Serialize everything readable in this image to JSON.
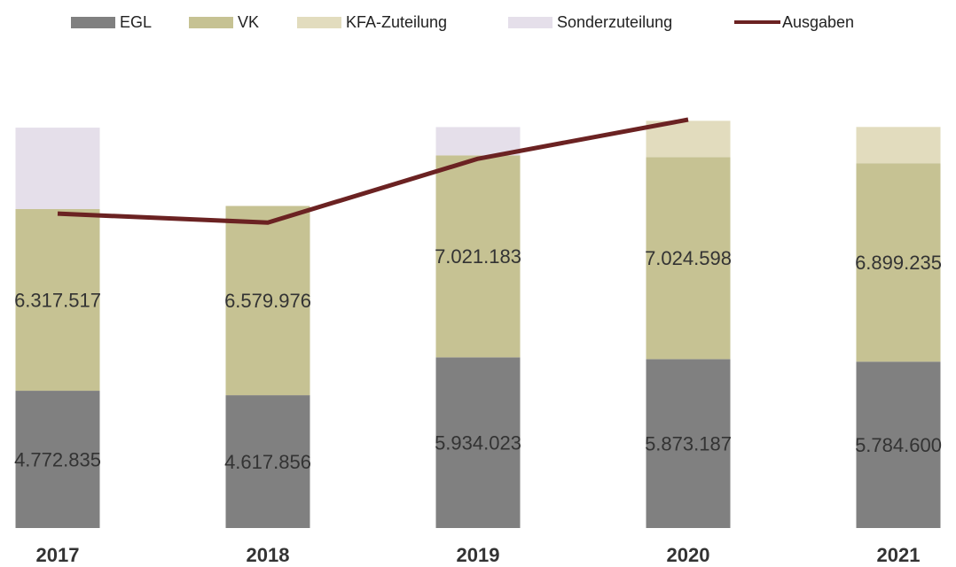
{
  "chart_data": {
    "type": "bar",
    "categories": [
      "2017",
      "2018",
      "2019",
      "2020",
      "2021"
    ],
    "series": [
      {
        "name": "EGL",
        "color": "#808080",
        "values": [
          4772835,
          4617856,
          5934023,
          5873187,
          5784600
        ],
        "value_labels": [
          "4.772.835",
          "4.617.856",
          "5.934.023",
          "5.873.187",
          "5.784.600"
        ]
      },
      {
        "name": "VK",
        "color": "#c6c293",
        "values": [
          6317517,
          6579976,
          7021183,
          7024598,
          6899235
        ],
        "value_labels": [
          "6.317.517",
          "6.579.976",
          "7.021.183",
          "7.024.598",
          "6.899.235"
        ]
      },
      {
        "name": "KFA-Zuteilung",
        "color": "#e2dcbe",
        "values": [
          null,
          null,
          null,
          1260000,
          1260000
        ]
      },
      {
        "name": "Sonderzuteilung",
        "color": "#e5dfea",
        "values": [
          2830000,
          null,
          985000,
          null,
          null
        ]
      },
      {
        "name": "Ausgaben",
        "type": "line",
        "color": "#6b2222",
        "values": [
          10930000,
          10620000,
          12840000,
          14200000,
          null
        ]
      }
    ]
  }
}
